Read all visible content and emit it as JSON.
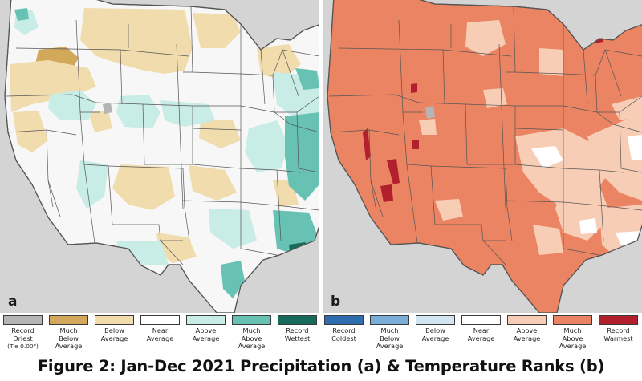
{
  "panels": [
    {
      "letter": "a",
      "topic": "precipitation"
    },
    {
      "letter": "b",
      "topic": "temperature"
    }
  ],
  "legend": [
    {
      "label": "Record\nDriest",
      "note": "(Tie 0.00\")",
      "color": "#b5b5b5"
    },
    {
      "label": "Much\nBelow\nAverage",
      "color": "#d2a95a"
    },
    {
      "label": "Below\nAverage",
      "color": "#f1dcae"
    },
    {
      "label": "Near\nAverage",
      "color": "#ffffff"
    },
    {
      "label": "Above\nAverage",
      "color": "#c8ece6"
    },
    {
      "label": "Much\nAbove\nAverage",
      "color": "#68c2b4"
    },
    {
      "label": "Record\nWettest",
      "color": "#166b5b"
    },
    {
      "label": "Record\nColdest",
      "color": "#2f6db0"
    },
    {
      "label": "Much\nBelow\nAverage",
      "color": "#79aedb"
    },
    {
      "label": "Below\nAverage",
      "color": "#d2e5f3"
    },
    {
      "label": "Near\nAverage",
      "color": "#ffffff"
    },
    {
      "label": "Above\nAverage",
      "color": "#f8cdb6"
    },
    {
      "label": "Much\nAbove\nAverage",
      "color": "#ea8462"
    },
    {
      "label": "Record\nWarmest",
      "color": "#b21f2d"
    }
  ],
  "caption": "Figure 2: Jan-Dec 2021 Precipitation (a) & Temperature Ranks (b)",
  "colors": {
    "ocean_land_gray": "#d4d4d4",
    "us_base_a": "#f7f7f7",
    "us_base_b": "#ea8462"
  }
}
